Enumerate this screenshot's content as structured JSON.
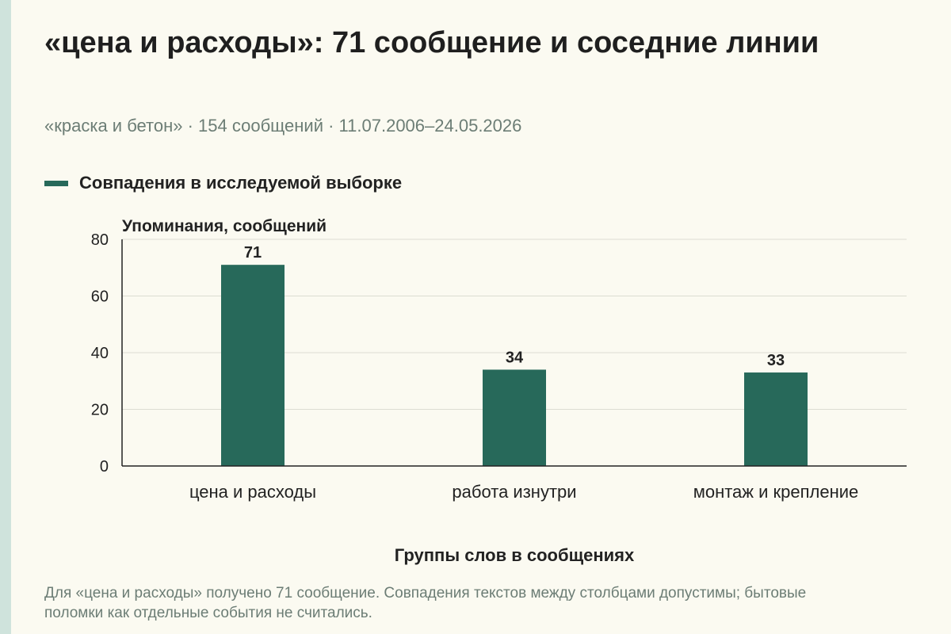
{
  "colors": {
    "bar": "#27695a",
    "accent_stripe": "#cfe3dc",
    "background": "#fbfaf1"
  },
  "header": {
    "title": "«цена и расходы»: 71 сообщение и соседние линии",
    "subtitle": "«краска и бетон» · 154 сообщений · 11.07.2006–24.05.2026"
  },
  "footnote": "Для «цена и расходы» получено 71 сообщение. Совпадения текстов между столбцами допустимы; бытовые поломки как отдельные события не считались.",
  "chart_data": {
    "type": "bar",
    "categories": [
      "цена и расходы",
      "работа изнутри",
      "монтаж и крепление"
    ],
    "series": [
      {
        "name": "Совпадения в исследуемой выборке",
        "values": [
          71,
          34,
          33
        ]
      }
    ],
    "ylabel": "Упоминания, сообщений",
    "xlabel": "Группы слов в сообщениях",
    "ylim": [
      0,
      80
    ],
    "yticks": [
      0,
      20,
      40,
      60,
      80
    ],
    "grid": true,
    "legend": "top-left"
  }
}
